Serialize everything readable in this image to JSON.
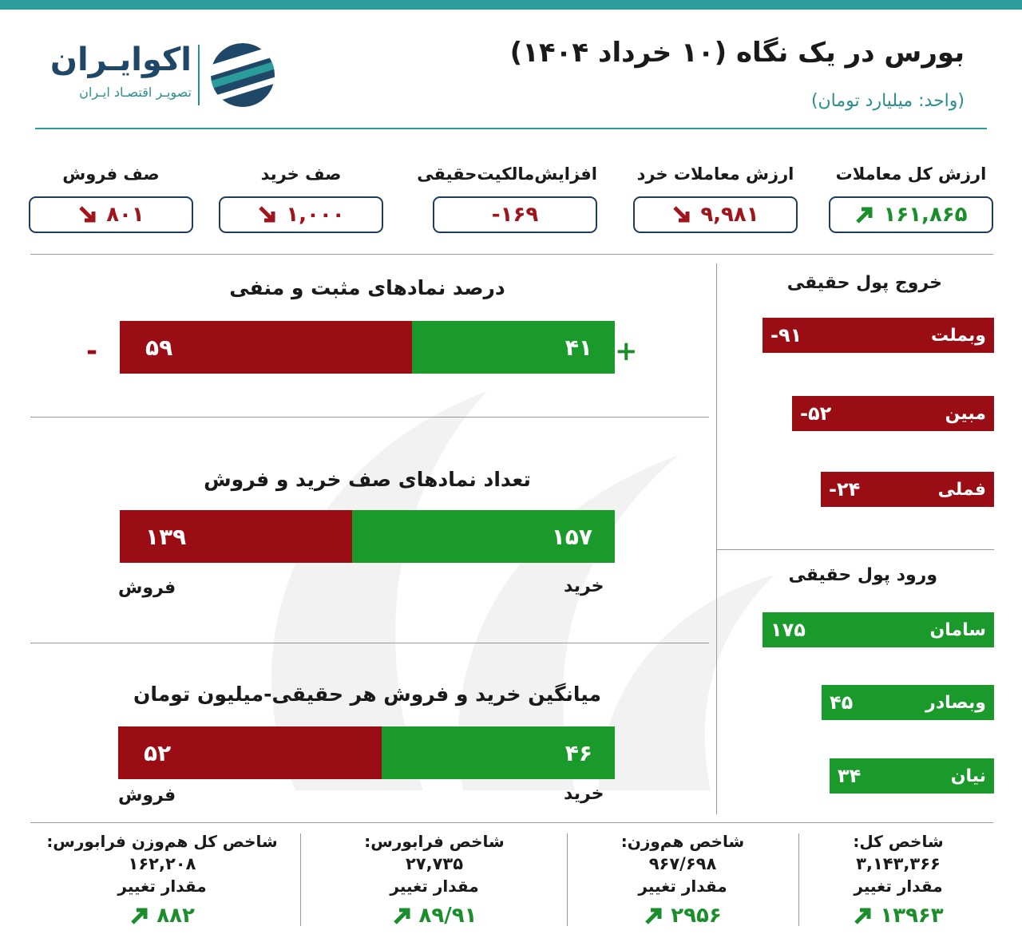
{
  "header": {
    "title": "بورس در یک نگاه (۱۰ خرداد ۱۴۰۴)",
    "unit": "(واحد: میلیارد تومان)",
    "logo_name": "اکوایـران",
    "logo_tagline": "تصویـر اقتصـاد ایـران"
  },
  "kpis": [
    {
      "label": "ارزش کل معاملات",
      "value": "۱۶۱,۸۶۵",
      "trend": "up"
    },
    {
      "label": "ارزش معاملات خرد",
      "value": "۹,۹۸۱",
      "trend": "down"
    },
    {
      "label": "افزایش‌مالکیت‌حقیقی",
      "value": "-۱۶۹",
      "trend": "none"
    },
    {
      "label": "صف خرید",
      "value": "۱,۰۰۰",
      "trend": "down"
    },
    {
      "label": "صف فروش",
      "value": "۸۰۱",
      "trend": "down"
    }
  ],
  "symbols_percent": {
    "title": "درصد نمادهای مثبت و منفی",
    "positive": 41,
    "negative": 59,
    "positive_label": "۴۱",
    "negative_label": "۵۹",
    "plus_sign": "+",
    "minus_sign": "-"
  },
  "queue_symbols": {
    "title": "تعداد نمادهای صف خرید و فروش",
    "buy": 157,
    "sell": 139,
    "buy_label": "۱۵۷",
    "sell_label": "۱۳۹",
    "buy_caption": "خرید",
    "sell_caption": "فروش"
  },
  "avg_trade": {
    "title": "میانگین خرید و فروش هر حقیقی-میلیون تومان",
    "buy": 46,
    "sell": 52,
    "buy_label": "۴۶",
    "sell_label": "۵۲",
    "buy_caption": "خرید",
    "sell_caption": "فروش"
  },
  "outflow": {
    "title": "خروج پول حقیقی",
    "items": [
      {
        "name": "وبملت",
        "value": -91,
        "label": "-۹۱"
      },
      {
        "name": "مبین",
        "value": -52,
        "label": "-۵۲"
      },
      {
        "name": "فملی",
        "value": -24,
        "label": "-۲۴"
      }
    ]
  },
  "inflow": {
    "title": "ورود پول حقیقی",
    "items": [
      {
        "name": "سامان",
        "value": 175,
        "label": "۱۷۵"
      },
      {
        "name": "وبصادر",
        "value": 45,
        "label": "۴۵"
      },
      {
        "name": "نیان",
        "value": 34,
        "label": "۳۴"
      }
    ]
  },
  "indices": [
    {
      "label": "شاخص کل:",
      "value": "۳,۱۴۳,۳۶۶",
      "change_label": "مقدار تغییر",
      "change": "۱۳۹۶۳"
    },
    {
      "label": "شاخص هم‌وزن:",
      "value": "۹۶۷/۶۹۸",
      "change_label": "مقدار تغییر",
      "change": "۲۹۵۶"
    },
    {
      "label": "شاخص فرابورس:",
      "value": "۲۷,۷۳۵",
      "change_label": "مقدار تغییر",
      "change": "۸۹/۹۱"
    },
    {
      "label": "شاخص کل هم‌وزن فرابورس:",
      "value": "۱۶۲,۲۰۸",
      "change_label": "مقدار تغییر",
      "change": "۸۸۲"
    }
  ],
  "colors": {
    "accent": "#2a9c9a",
    "positive": "#1a9a2a",
    "negative": "#9b0d14",
    "box_border": "#1f3b5a"
  }
}
